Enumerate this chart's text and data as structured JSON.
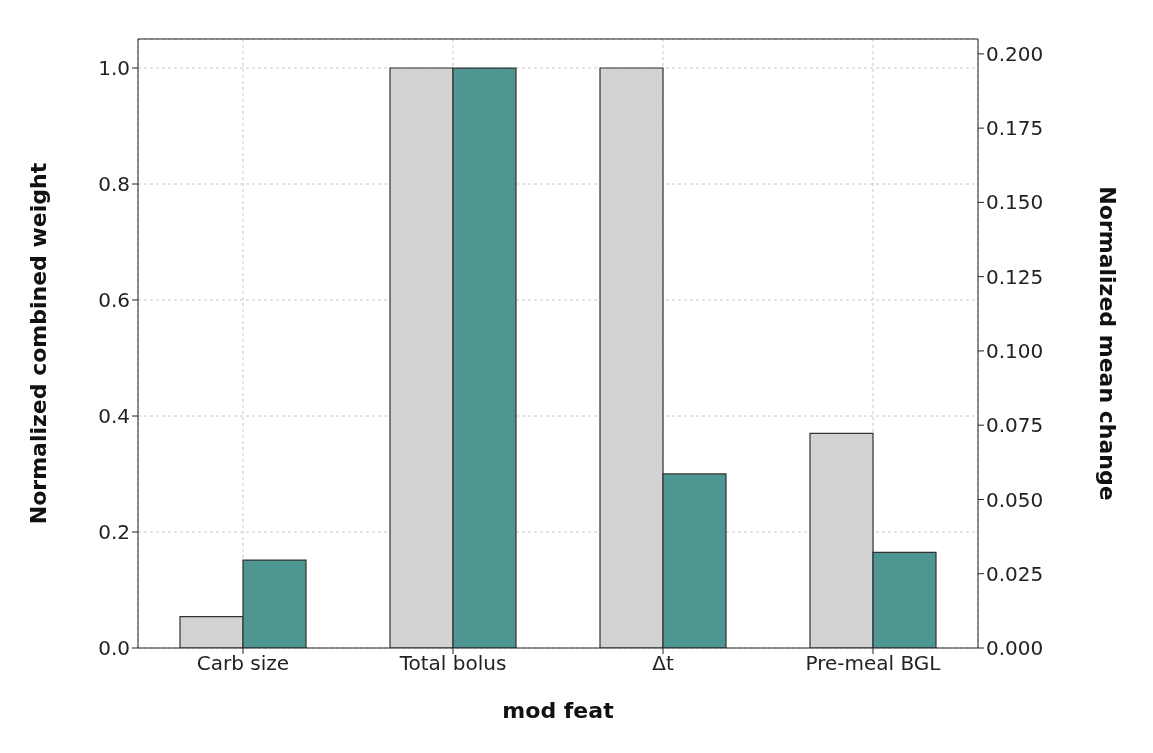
{
  "chart_data": {
    "type": "bar",
    "xlabel": "mod feat",
    "ylabel": "Normalized combined weight",
    "y2label": "Normalized mean change",
    "categories": [
      "Carb size",
      "Total bolus",
      "Δt",
      "Pre-meal BGL"
    ],
    "series": [
      {
        "color": "#d3d3d3",
        "values": [
          0.054,
          1.0,
          1.0,
          0.37
        ]
      },
      {
        "color": "#4e9692",
        "values": [
          0.0296,
          0.1952,
          0.0586,
          0.0322
        ],
        "axis": "y2"
      }
    ],
    "ylim": [
      0,
      1.05
    ],
    "yticks": [
      {
        "value": 0,
        "label": "0.0"
      },
      {
        "value": 0.2,
        "label": "0.2"
      },
      {
        "value": 0.4,
        "label": "0.4"
      },
      {
        "value": 0.6,
        "label": "0.6"
      },
      {
        "value": 0.8,
        "label": "0.8"
      },
      {
        "value": 1,
        "label": "1.0"
      }
    ],
    "y2lim": [
      0,
      0.205
    ],
    "y2ticks": [
      {
        "value": 0,
        "label": "0.000"
      },
      {
        "value": 0.025,
        "label": "0.025"
      },
      {
        "value": 0.05,
        "label": "0.050"
      },
      {
        "value": 0.075,
        "label": "0.075"
      },
      {
        "value": 0.1,
        "label": "0.100"
      },
      {
        "value": 0.125,
        "label": "0.125"
      },
      {
        "value": 0.15,
        "label": "0.150"
      },
      {
        "value": 0.175,
        "label": "0.175"
      },
      {
        "value": 0.2,
        "label": "0.200"
      }
    ],
    "grid": true
  }
}
